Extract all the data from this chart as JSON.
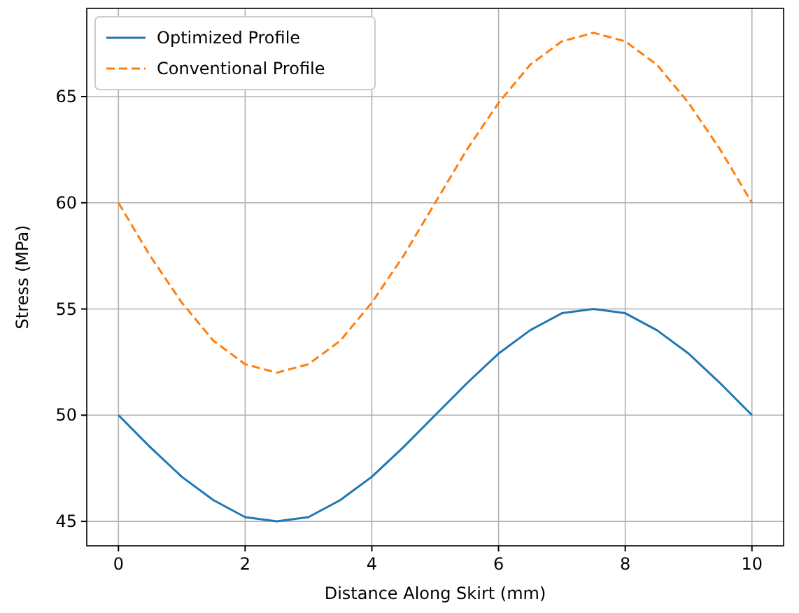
{
  "chart_data": {
    "type": "line",
    "xlabel": "Distance Along Skirt (mm)",
    "ylabel": "Stress (MPa)",
    "x": [
      0,
      0.5,
      1,
      1.5,
      2,
      2.5,
      3,
      3.5,
      4,
      4.5,
      5,
      5.5,
      6,
      6.5,
      7,
      7.5,
      8,
      8.5,
      9,
      9.5,
      10
    ],
    "series": [
      {
        "name": "Optimized Profile",
        "color": "#1f77b4",
        "line_style": "solid",
        "values": [
          50,
          48.5,
          47.1,
          46,
          45.2,
          45,
          45.2,
          46,
          47.1,
          48.5,
          50,
          51.5,
          52.9,
          54,
          54.8,
          55,
          54.8,
          54,
          52.9,
          51.5,
          50
        ]
      },
      {
        "name": "Conventional Profile",
        "color": "#ff7f0e",
        "line_style": "dashed",
        "values": [
          60,
          57.5,
          55.3,
          53.5,
          52.4,
          52,
          52.4,
          53.5,
          55.3,
          57.5,
          60,
          62.5,
          64.7,
          66.5,
          67.6,
          68,
          67.6,
          66.5,
          64.7,
          62.5,
          60
        ]
      }
    ],
    "xlim": [
      -0.5,
      10.5
    ],
    "xticks": [
      0,
      2,
      4,
      6,
      8,
      10
    ],
    "ylim": [
      43.85,
      69.15
    ],
    "yticks": [
      45,
      50,
      55,
      60,
      65
    ],
    "grid": true,
    "legend": "top left",
    "marker": "none"
  }
}
